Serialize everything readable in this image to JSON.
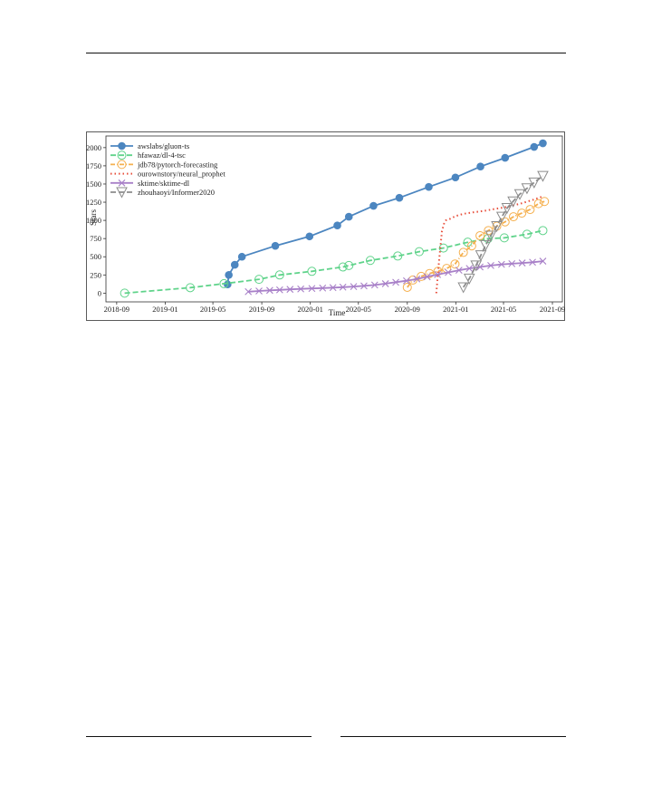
{
  "chart_data": {
    "type": "line",
    "title": "",
    "xlabel": "Time",
    "ylabel": "Stars",
    "ylim": [
      -120,
      2160
    ],
    "y_ticks": [
      0,
      250,
      500,
      750,
      1000,
      1250,
      1500,
      1750,
      2000
    ],
    "y_tick_labels": [
      "0",
      "250",
      "500",
      "750",
      "1000",
      "1250",
      "1500",
      "1750",
      "2000"
    ],
    "x_ticks": [
      "2018-09",
      "2019-01",
      "2019-05",
      "2019-09",
      "2020-01",
      "2020-05",
      "2020-09",
      "2021-01",
      "2021-05",
      "2021-09"
    ],
    "xlim": [
      "2018-08-05",
      "2021-09-26"
    ],
    "grid": false,
    "legend_position": "upper-left",
    "series": [
      {
        "name": "awslabs/gluon-ts",
        "color": "#4c86c0",
        "marker": "circle-filled",
        "linestyle": "solid",
        "x": [
          "2019-06-07",
          "2019-06-10",
          "2019-06-25",
          "2019-07-13",
          "2019-10-05",
          "2019-12-30",
          "2020-03-09",
          "2020-04-07",
          "2020-06-08",
          "2020-08-12",
          "2020-10-25",
          "2020-12-31",
          "2021-03-04",
          "2021-05-05",
          "2021-07-17",
          "2021-08-08"
        ],
        "y": [
          120,
          250,
          390,
          500,
          650,
          780,
          930,
          1050,
          1200,
          1310,
          1460,
          1590,
          1740,
          1860,
          2010,
          2060
        ]
      },
      {
        "name": "hfawaz/dl-4-tsc",
        "color": "#5fd38a",
        "marker": "circle-open",
        "linestyle": "dashed",
        "x": [
          "2018-09-21",
          "2019-03-05",
          "2019-05-29",
          "2019-08-25",
          "2019-10-16",
          "2020-01-05",
          "2020-03-23",
          "2020-04-07",
          "2020-05-31",
          "2020-08-08",
          "2020-10-01",
          "2020-12-01",
          "2021-01-31",
          "2021-03-23",
          "2021-05-03",
          "2021-06-29",
          "2021-08-08"
        ],
        "y": [
          0,
          75,
          130,
          190,
          250,
          300,
          360,
          380,
          450,
          510,
          570,
          620,
          700,
          750,
          760,
          810,
          860
        ]
      },
      {
        "name": "jdb78/pytorch-forecasting",
        "color": "#f5b04f",
        "marker": "circle-open",
        "linestyle": "dashdot",
        "x": [
          "2020-09-01",
          "2020-09-15",
          "2020-10-06",
          "2020-10-27",
          "2020-11-17",
          "2020-12-09",
          "2020-12-30",
          "2021-01-20",
          "2021-02-10",
          "2021-03-03",
          "2021-03-24",
          "2021-04-14",
          "2021-05-05",
          "2021-05-26",
          "2021-06-16",
          "2021-07-07",
          "2021-07-28",
          "2021-08-12"
        ],
        "y": [
          80,
          180,
          230,
          270,
          300,
          340,
          400,
          560,
          650,
          790,
          860,
          920,
          980,
          1050,
          1100,
          1150,
          1230,
          1260
        ]
      },
      {
        "name": "ourownstory/neural_prophet",
        "color": "#e8503d",
        "marker": "none",
        "linestyle": "dotted",
        "x": [
          "2020-11-13",
          "2020-11-20",
          "2020-11-27",
          "2020-12-02",
          "2020-12-07",
          "2020-12-17",
          "2021-01-01",
          "2021-01-20",
          "2021-02-12",
          "2021-03-12",
          "2021-04-12",
          "2021-05-13",
          "2021-06-13",
          "2021-07-13",
          "2021-08-08"
        ],
        "y": [
          0,
          450,
          850,
          950,
          1000,
          1020,
          1060,
          1090,
          1110,
          1130,
          1160,
          1190,
          1230,
          1280,
          1330
        ]
      },
      {
        "name": "sktime/sktime-dl",
        "color": "#a880c8",
        "marker": "x",
        "linestyle": "solid",
        "x": [
          "2019-07-29",
          "2019-08-25",
          "2019-09-21",
          "2019-10-16",
          "2019-11-11",
          "2019-12-08",
          "2020-01-05",
          "2020-02-01",
          "2020-02-27",
          "2020-03-23",
          "2020-04-19",
          "2020-05-15",
          "2020-06-11",
          "2020-07-08",
          "2020-08-03",
          "2020-08-30",
          "2020-09-25",
          "2020-10-21",
          "2020-11-16",
          "2020-12-13",
          "2021-01-09",
          "2021-02-04",
          "2021-03-03",
          "2021-03-30",
          "2021-04-26",
          "2021-05-22",
          "2021-06-17",
          "2021-07-13",
          "2021-08-08"
        ],
        "y": [
          20,
          30,
          38,
          45,
          52,
          58,
          64,
          70,
          76,
          82,
          90,
          100,
          112,
          130,
          150,
          170,
          195,
          225,
          255,
          285,
          315,
          340,
          360,
          380,
          395,
          405,
          415,
          425,
          440
        ]
      },
      {
        "name": "zhouhaoyi/Informer2020",
        "color": "#8c8c8c",
        "marker": "triangle-down-open",
        "linestyle": "dashed",
        "x": [
          "2021-01-20",
          "2021-02-04",
          "2021-02-21",
          "2021-03-05",
          "2021-03-17",
          "2021-03-30",
          "2021-04-14",
          "2021-04-27",
          "2021-05-10",
          "2021-05-25",
          "2021-06-11",
          "2021-06-29",
          "2021-07-17",
          "2021-08-08"
        ],
        "y": [
          80,
          200,
          380,
          520,
          660,
          790,
          920,
          1050,
          1170,
          1260,
          1360,
          1440,
          1520,
          1610
        ]
      }
    ]
  }
}
